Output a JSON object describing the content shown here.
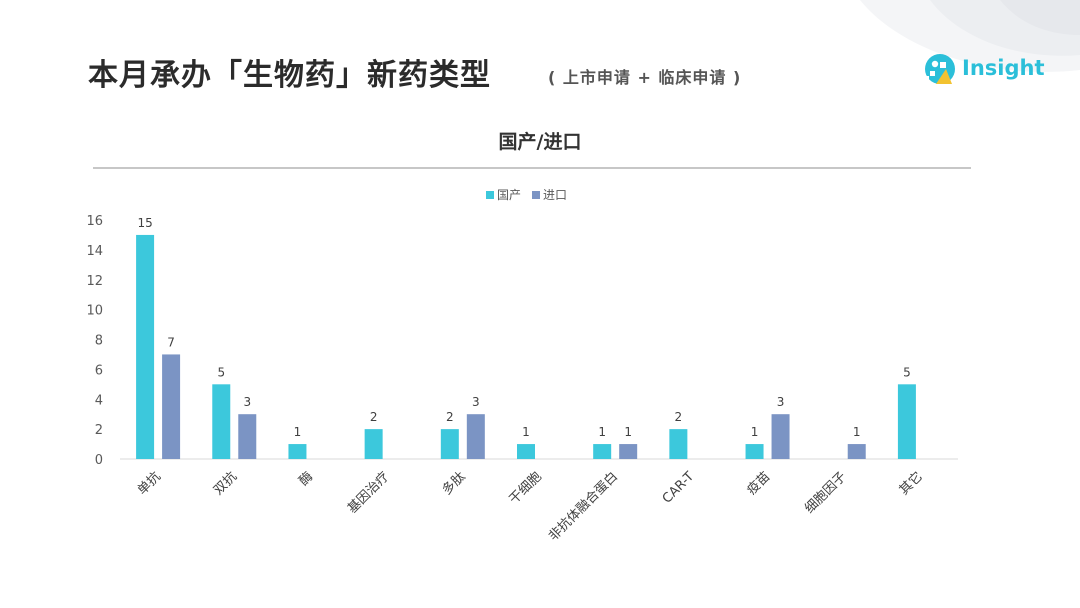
{
  "page": {
    "title": "本月承办「生物药」新药类型",
    "subtitle": "( 上市申请 + 临床申请 )",
    "logo_text": "Insight",
    "chart_heading": "国产/进口"
  },
  "colors": {
    "domestic": "#3cc8dc",
    "import": "#7b94c4",
    "logo": "#2bbfd9",
    "logo_accent": "#f2c230"
  },
  "chart_data": {
    "type": "bar",
    "categories": [
      "单抗",
      "双抗",
      "酶",
      "基因治疗",
      "多肽",
      "干细胞",
      "非抗体融合蛋白",
      "CAR-T",
      "疫苗",
      "细胞因子",
      "其它"
    ],
    "series": [
      {
        "name": "国产",
        "values": [
          15,
          5,
          1,
          2,
          2,
          1,
          1,
          2,
          1,
          null,
          5
        ]
      },
      {
        "name": "进口",
        "values": [
          7,
          3,
          null,
          null,
          3,
          null,
          1,
          null,
          3,
          1,
          null
        ]
      }
    ],
    "ylim": [
      0,
      16
    ],
    "yticks": [
      0,
      2,
      4,
      6,
      8,
      10,
      12,
      14,
      16
    ],
    "legend": "top-center",
    "grid": false,
    "data_labels": true
  }
}
